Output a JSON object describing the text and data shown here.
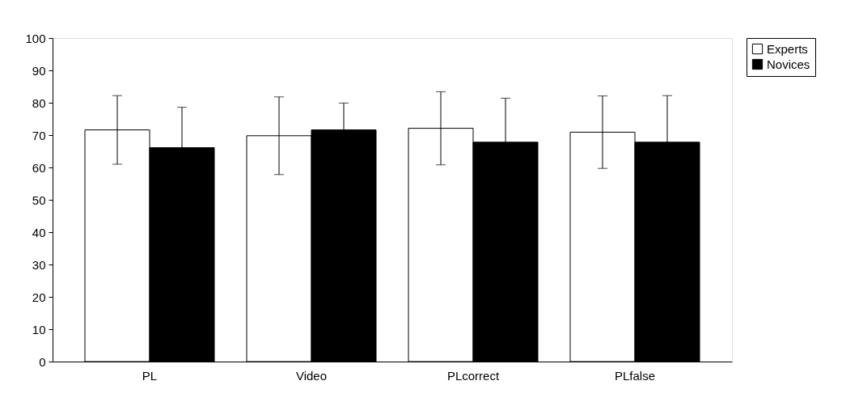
{
  "chart_data": {
    "type": "bar",
    "categories": [
      "PL",
      "Video",
      "PLcorrect",
      "PLfalse"
    ],
    "series": [
      {
        "name": "Experts",
        "color": "#ffffff",
        "values": [
          71.6,
          69.8,
          72.1,
          70.9
        ],
        "errors": [
          10.6,
          12.0,
          11.3,
          11.2
        ]
      },
      {
        "name": "Novices",
        "color": "#000000",
        "values": [
          66.1,
          71.6,
          67.8,
          67.8
        ],
        "errors": [
          12.5,
          8.3,
          13.6,
          14.4
        ]
      }
    ],
    "ylim": [
      0,
      100
    ],
    "yticks": [
      0,
      10,
      20,
      30,
      40,
      50,
      60,
      70,
      80,
      90,
      100
    ],
    "grid": false,
    "legend": "right"
  }
}
